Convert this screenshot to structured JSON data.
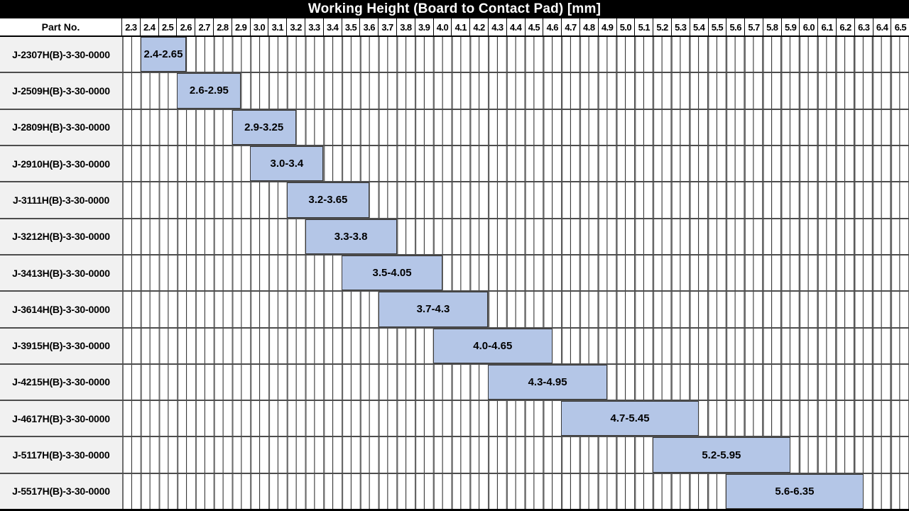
{
  "title_bar": {
    "title": "Working Height (Board to Contact Pad) [mm]"
  },
  "header": {
    "part_col_label": "Part No."
  },
  "chart_data": {
    "type": "bar",
    "subtype": "horizontal-range-gantt",
    "title": "Working Height (Board to Contact Pad) [mm]",
    "xlabel": "Working Height (Board to Contact Pad) [mm]",
    "ylabel": "Part No.",
    "xlim": [
      2.3,
      6.6
    ],
    "tick_step": 0.1,
    "minor_grid_step": 0.05,
    "grid": "on",
    "bar_color": "#b4c6e7",
    "bar_border_color": "#3a3a3a",
    "x_ticks": [
      "2.3",
      "2.4",
      "2.5",
      "2.6",
      "2.7",
      "2.8",
      "2.9",
      "3.0",
      "3.1",
      "3.2",
      "3.3",
      "3.4",
      "3.5",
      "3.6",
      "3.7",
      "3.8",
      "3.9",
      "4.0",
      "4.1",
      "4.2",
      "4.3",
      "4.4",
      "4.5",
      "4.6",
      "4.7",
      "4.8",
      "4.9",
      "5.0",
      "5.1",
      "5.2",
      "5.3",
      "5.4",
      "5.5",
      "5.6",
      "5.7",
      "5.8",
      "5.9",
      "6.0",
      "6.1",
      "6.2",
      "6.3",
      "6.4",
      "6.5"
    ],
    "rows": [
      {
        "part_no": "J-2307H(B)-3-30-0000",
        "start": 2.4,
        "end": 2.65,
        "label": "2.4-2.65"
      },
      {
        "part_no": "J-2509H(B)-3-30-0000",
        "start": 2.6,
        "end": 2.95,
        "label": "2.6-2.95"
      },
      {
        "part_no": "J-2809H(B)-3-30-0000",
        "start": 2.9,
        "end": 3.25,
        "label": "2.9-3.25"
      },
      {
        "part_no": "J-2910H(B)-3-30-0000",
        "start": 3.0,
        "end": 3.4,
        "label": "3.0-3.4"
      },
      {
        "part_no": "J-3111H(B)-3-30-0000",
        "start": 3.2,
        "end": 3.65,
        "label": "3.2-3.65"
      },
      {
        "part_no": "J-3212H(B)-3-30-0000",
        "start": 3.3,
        "end": 3.8,
        "label": "3.3-3.8"
      },
      {
        "part_no": "J-3413H(B)-3-30-0000",
        "start": 3.5,
        "end": 4.05,
        "label": "3.5-4.05"
      },
      {
        "part_no": "J-3614H(B)-3-30-0000",
        "start": 3.7,
        "end": 4.3,
        "label": "3.7-4.3"
      },
      {
        "part_no": "J-3915H(B)-3-30-0000",
        "start": 4.0,
        "end": 4.65,
        "label": "4.0-4.65"
      },
      {
        "part_no": "J-4215H(B)-3-30-0000",
        "start": 4.3,
        "end": 4.95,
        "label": "4.3-4.95"
      },
      {
        "part_no": "J-4617H(B)-3-30-0000",
        "start": 4.7,
        "end": 5.45,
        "label": "4.7-5.45"
      },
      {
        "part_no": "J-5117H(B)-3-30-0000",
        "start": 5.2,
        "end": 5.95,
        "label": "5.2-5.95"
      },
      {
        "part_no": "J-5517H(B)-3-30-0000",
        "start": 5.6,
        "end": 6.35,
        "label": "5.6-6.35"
      }
    ]
  }
}
